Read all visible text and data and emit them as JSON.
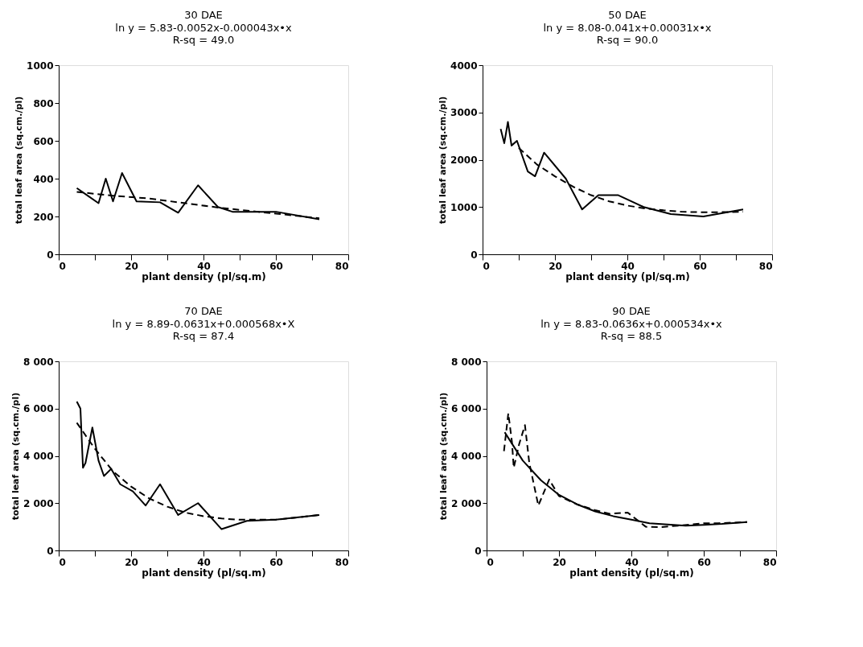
{
  "chart_data": [
    {
      "type": "line",
      "title": "30 DAE",
      "subtitle": "ln y = 5.83-0.0052x-0.000043x•x",
      "annotations": [
        "R-sq = 49.0"
      ],
      "xlabel": "plant density (pl/sq.m)",
      "ylabel": "total leaf area (sq.cm./pl)",
      "xlim": [
        0,
        80
      ],
      "ylim": [
        0,
        1000
      ],
      "xticks": [
        0,
        {
          "value": 10,
          "label": null
        },
        20,
        {
          "value": 30,
          "label": null
        },
        40,
        {
          "value": 50,
          "label": null
        },
        60,
        {
          "value": 70,
          "label": null
        },
        80
      ],
      "yticks": [
        0,
        200,
        400,
        600,
        800,
        1000
      ],
      "grid": false,
      "series": [
        {
          "color": "#000000",
          "line_style": "solid",
          "x": [
            5,
            8,
            11,
            13,
            15,
            17.5,
            21.5,
            28,
            33,
            38.5,
            44,
            48,
            60,
            72
          ],
          "values": [
            350,
            310,
            270,
            400,
            280,
            430,
            280,
            275,
            220,
            365,
            250,
            225,
            225,
            185
          ]
        },
        {
          "color": "#000000",
          "line_style": "dashed",
          "x": [
            5,
            15,
            25,
            35,
            45,
            55,
            65,
            72
          ],
          "values": [
            330,
            310,
            295,
            270,
            245,
            225,
            205,
            190
          ]
        }
      ]
    },
    {
      "type": "line",
      "title": "50 DAE",
      "subtitle": "ln y = 8.08-0.041x+0.00031x•x",
      "annotations": [
        "R-sq = 90.0"
      ],
      "xlabel": "plant density (pl/sq.m)",
      "ylabel": "total leaf area (sq.cm./pl)",
      "xlim": [
        0,
        80
      ],
      "ylim": [
        0,
        4000
      ],
      "xticks": [
        0,
        {
          "value": 10,
          "label": null
        },
        20,
        {
          "value": 30,
          "label": null
        },
        40,
        {
          "value": 50,
          "label": null
        },
        60,
        {
          "value": 70,
          "label": null
        },
        80
      ],
      "yticks": [
        0,
        1000,
        2000,
        3000,
        4000
      ],
      "grid": false,
      "series": [
        {
          "color": "#000000",
          "line_style": "solid",
          "x": [
            5,
            6,
            7,
            8,
            9.5,
            12.5,
            14.5,
            17,
            23,
            27.5,
            32,
            37.5,
            44.5,
            52,
            61,
            72
          ],
          "values": [
            2650,
            2350,
            2800,
            2300,
            2400,
            1750,
            1650,
            2150,
            1600,
            950,
            1250,
            1250,
            1000,
            850,
            800,
            950
          ]
        },
        {
          "color": "#000000",
          "line_style": "dashed",
          "x": [
            10,
            15,
            20,
            25,
            30,
            35,
            40,
            45,
            50,
            55,
            60,
            65,
            72
          ],
          "values": [
            2250,
            1900,
            1650,
            1430,
            1250,
            1120,
            1030,
            970,
            930,
            900,
            890,
            890,
            900
          ]
        }
      ]
    },
    {
      "type": "line",
      "title": "70 DAE",
      "subtitle": "ln y = 8.89-0.0631x+0.000568x•X",
      "annotations": [
        "R-sq = 87.4"
      ],
      "xlabel": "plant density (pl/sq.m)",
      "ylabel": "total leaf area (sq.cm./pl)",
      "xlim": [
        0,
        80
      ],
      "ylim": [
        0,
        8000
      ],
      "xticks": [
        0,
        {
          "value": 10,
          "label": null
        },
        20,
        {
          "value": 30,
          "label": null
        },
        40,
        {
          "value": 50,
          "label": null
        },
        60,
        {
          "value": 70,
          "label": null
        },
        80
      ],
      "yticks": [
        0,
        {
          "value": 2000,
          "label": "2 000"
        },
        {
          "value": 4000,
          "label": "4 000"
        },
        {
          "value": 6000,
          "label": "6 000"
        },
        {
          "value": 8000,
          "label": "8 000"
        }
      ],
      "grid": false,
      "series": [
        {
          "color": "#000000",
          "line_style": "solid",
          "x": [
            5,
            6,
            6.7,
            7.4,
            9.3,
            11,
            12.5,
            14.5,
            17,
            20.5,
            24,
            28,
            33,
            38.5,
            45,
            52,
            60,
            72
          ],
          "values": [
            6300,
            6000,
            3500,
            3700,
            5200,
            3800,
            3150,
            3450,
            2800,
            2500,
            1900,
            2800,
            1500,
            2000,
            900,
            1250,
            1300,
            1500
          ]
        },
        {
          "color": "#000000",
          "line_style": "dashed",
          "x": [
            5,
            10,
            15,
            20,
            25,
            30,
            35,
            40,
            45,
            50,
            55,
            60,
            65,
            72
          ],
          "values": [
            5400,
            4300,
            3350,
            2700,
            2200,
            1850,
            1600,
            1450,
            1350,
            1300,
            1300,
            1300,
            1380,
            1500
          ]
        }
      ]
    },
    {
      "type": "line",
      "title": "90 DAE",
      "subtitle": "ln y = 8.83-0.0636x+0.000534x•x",
      "annotations": [
        "R-sq = 88.5"
      ],
      "xlabel": "plant density (pl/sq.m)",
      "ylabel": "total leaf area (sq.cm./pl)",
      "xlim": [
        0,
        80
      ],
      "ylim": [
        0,
        8000
      ],
      "xticks": [
        0,
        {
          "value": 10,
          "label": null
        },
        20,
        {
          "value": 30,
          "label": null
        },
        40,
        {
          "value": 50,
          "label": null
        },
        60,
        {
          "value": 70,
          "label": null
        },
        80
      ],
      "yticks": [
        0,
        {
          "value": 2000,
          "label": "2 000"
        },
        {
          "value": 4000,
          "label": "4 000"
        },
        {
          "value": 6000,
          "label": "6 000"
        },
        {
          "value": 8000,
          "label": "8 000"
        }
      ],
      "grid": false,
      "series": [
        {
          "color": "#000000",
          "line_style": "dashed",
          "x": [
            4.8,
            6,
            7,
            7.5,
            9,
            10.6,
            11.8,
            14.3,
            17.3,
            20,
            25,
            30,
            34,
            39,
            44,
            48,
            53,
            60,
            64,
            72
          ],
          "values": [
            4200,
            5800,
            4600,
            3500,
            4500,
            5300,
            3700,
            1900,
            3000,
            2300,
            1950,
            1700,
            1550,
            1600,
            1000,
            980,
            1050,
            1150,
            1150,
            1200
          ]
        },
        {
          "color": "#000000",
          "line_style": "solid",
          "x": [
            5,
            10,
            15,
            20,
            25,
            30,
            35,
            40,
            45,
            50,
            55,
            60,
            65,
            72
          ],
          "values": [
            5000,
            3800,
            2970,
            2350,
            1950,
            1650,
            1450,
            1300,
            1150,
            1100,
            1050,
            1080,
            1120,
            1200
          ]
        }
      ]
    }
  ]
}
